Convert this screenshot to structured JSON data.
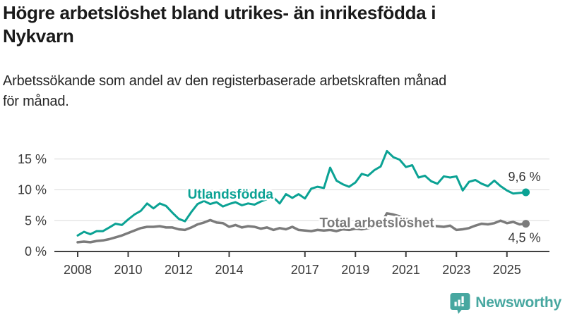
{
  "header": {
    "title_lines": [
      "Högre arbetslöshet bland utrikes- än inrikesfödda i",
      "Nykvarn"
    ],
    "subtitle_lines": [
      "Arbetssökande som andel av den registerbaserade arbetskraften månad",
      "för månad."
    ]
  },
  "footer": {
    "brand": "Newsworthy"
  },
  "colors": {
    "foreign_born": "#0ba294",
    "total": "#7b7b7b",
    "axis": "#3f3f3f",
    "grid": "#dadada",
    "tick_text": "#3a3a3a",
    "end_label_text": "#333333",
    "brand_teal": "#47a7a0"
  },
  "chart_data": {
    "type": "line",
    "title": "Högre arbetslöshet bland utrikes- än inrikesfödda i Nykvarn",
    "subtitle": "Arbetssökande som andel av den registerbaserade arbetskraften månad för månad.",
    "xlabel": "",
    "ylabel": "",
    "unit": "%",
    "grid": "horizontal",
    "legend_position": "inline-labels",
    "x_range": [
      2007.4,
      2026.3
    ],
    "ylim": [
      0,
      17
    ],
    "x_ticks": [
      {
        "v": 2008,
        "label": "2008"
      },
      {
        "v": 2010,
        "label": "2010"
      },
      {
        "v": 2012,
        "label": "2012"
      },
      {
        "v": 2014,
        "label": "2014"
      },
      {
        "v": 2017,
        "label": "2017"
      },
      {
        "v": 2019,
        "label": "2019"
      },
      {
        "v": 2021,
        "label": "2021"
      },
      {
        "v": 2023,
        "label": "2023"
      },
      {
        "v": 2025,
        "label": "2025"
      }
    ],
    "y_ticks": [
      {
        "v": 0,
        "label": "0 %"
      },
      {
        "v": 5,
        "label": "5 %"
      },
      {
        "v": 10,
        "label": "10 %"
      },
      {
        "v": 15,
        "label": "15 %"
      }
    ],
    "series": [
      {
        "id": "utlandsfodda",
        "name": "Utlandsfödda",
        "color": "#0ba294",
        "line_width": 3,
        "x_start": 2008.0,
        "x_step": 0.25,
        "values": [
          2.6,
          3.2,
          2.8,
          3.3,
          3.3,
          3.9,
          4.5,
          4.3,
          5.2,
          6.0,
          6.6,
          7.8,
          7.0,
          7.8,
          7.4,
          6.3,
          5.3,
          4.9,
          6.4,
          7.7,
          8.2,
          7.7,
          8.0,
          7.3,
          7.7,
          8.0,
          7.5,
          7.8,
          7.6,
          8.1,
          8.5,
          8.8,
          7.8,
          9.3,
          8.7,
          9.3,
          8.6,
          10.2,
          10.5,
          10.3,
          13.6,
          11.5,
          10.9,
          10.5,
          11.2,
          12.6,
          12.3,
          13.2,
          13.8,
          16.3,
          15.3,
          14.9,
          13.7,
          14.0,
          12.0,
          12.3,
          11.4,
          11.0,
          12.2,
          12.0,
          12.2,
          9.9,
          11.3,
          11.6,
          11.0,
          10.6,
          11.5,
          10.6,
          9.9,
          9.4,
          9.5,
          9.6
        ],
        "end_value": 9.6,
        "end_label": "9,6 %",
        "end_label_side": "above",
        "label_anchor": {
          "x": 2014.05,
          "y": 9.4
        }
      },
      {
        "id": "total",
        "name": "Total arbetslöshet",
        "color": "#7b7b7b",
        "line_width": 3.5,
        "x_start": 2008.0,
        "x_step": 0.25,
        "values": [
          1.5,
          1.6,
          1.5,
          1.7,
          1.8,
          2.0,
          2.3,
          2.6,
          3.0,
          3.4,
          3.8,
          4.0,
          4.0,
          4.1,
          3.9,
          3.9,
          3.6,
          3.5,
          3.9,
          4.4,
          4.7,
          5.1,
          4.7,
          4.6,
          4.0,
          4.3,
          3.9,
          4.1,
          4.0,
          3.7,
          3.9,
          3.5,
          3.8,
          3.6,
          4.0,
          3.5,
          3.4,
          3.3,
          3.5,
          3.4,
          3.5,
          3.3,
          3.6,
          3.5,
          3.7,
          3.6,
          3.8,
          4.0,
          4.4,
          6.2,
          6.0,
          5.7,
          5.3,
          5.0,
          4.7,
          4.4,
          4.2,
          4.1,
          4.0,
          4.2,
          3.5,
          3.6,
          3.8,
          4.2,
          4.5,
          4.4,
          4.6,
          5.0,
          4.6,
          4.8,
          4.4,
          4.5
        ],
        "end_value": 4.5,
        "end_label": "4,5 %",
        "end_label_side": "below",
        "label_anchor": {
          "x": 2019.85,
          "y": 4.75
        }
      }
    ]
  }
}
